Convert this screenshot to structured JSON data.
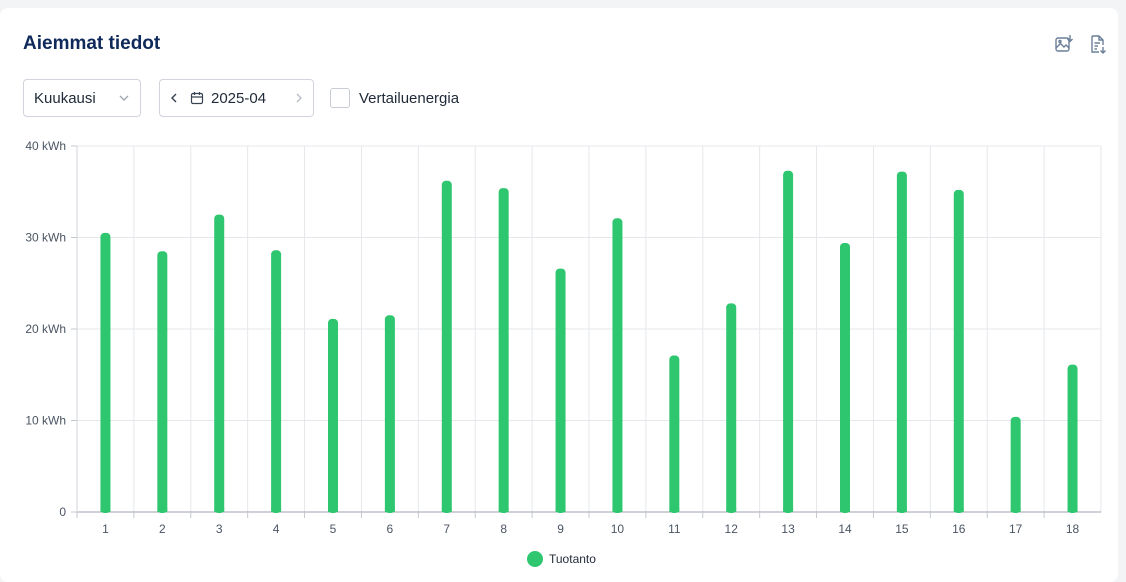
{
  "panel": {
    "title": "Aiemmat tiedot",
    "actions": [
      {
        "icon": "image-download-icon"
      },
      {
        "icon": "document-export-icon"
      }
    ]
  },
  "controls": {
    "period_select": {
      "value": "Kuukausi",
      "icon": "chevron-down-icon"
    },
    "date_picker": {
      "value": "2025-04",
      "prev_icon": "chevron-left-icon",
      "next_icon": "chevron-right-icon",
      "calendar_icon": "calendar-icon"
    },
    "compare_checkbox": {
      "label": "Vertailuenergia",
      "checked": false
    }
  },
  "colors": {
    "series": "#2ec66e",
    "grid": "#e5e7eb",
    "axis": "#6b7280"
  },
  "chart_data": {
    "type": "bar",
    "categories": [
      "1",
      "2",
      "3",
      "4",
      "5",
      "6",
      "7",
      "8",
      "9",
      "10",
      "11",
      "12",
      "13",
      "14",
      "15",
      "16",
      "17",
      "18"
    ],
    "series": [
      {
        "name": "Tuotanto",
        "values": [
          30.5,
          28.5,
          32.5,
          28.6,
          21.1,
          21.5,
          36.2,
          35.4,
          26.6,
          32.1,
          17.1,
          22.8,
          37.3,
          29.4,
          37.2,
          35.2,
          10.4,
          16.1
        ]
      }
    ],
    "ylim": [
      0,
      40
    ],
    "yticks": [
      {
        "value": 0,
        "label": "0"
      },
      {
        "value": 10,
        "label": "10 kWh"
      },
      {
        "value": 20,
        "label": "20 kWh"
      },
      {
        "value": 30,
        "label": "30 kWh"
      },
      {
        "value": 40,
        "label": "40 kWh"
      }
    ],
    "grid": true,
    "legend": "bottom-center"
  }
}
